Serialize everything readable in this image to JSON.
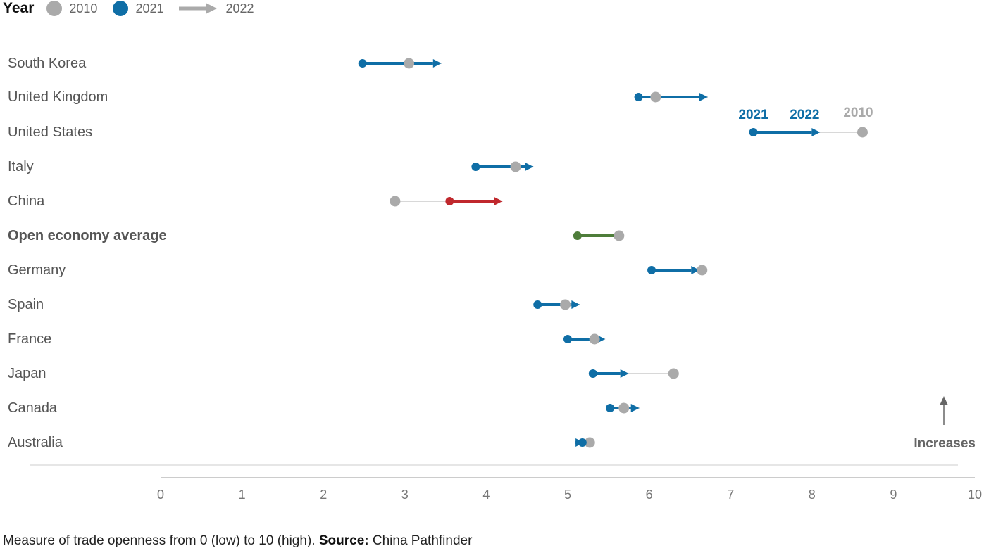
{
  "legend": {
    "title": "Year",
    "items": [
      {
        "label": "2010",
        "color": "#aaaaaa",
        "shape": "dot"
      },
      {
        "label": "2021",
        "color": "#0f6ea6",
        "shape": "dot"
      },
      {
        "label": "2022",
        "color": "#aaaaaa",
        "shape": "arrow"
      }
    ]
  },
  "caption": {
    "text": "Measure of trade openness from 0 (low) to 10 (high).",
    "source_label": "Source:",
    "source": "China Pathfinder"
  },
  "colors": {
    "v2010": "#aaaaaa",
    "v2021": "#0f6ea6",
    "china": "#c0282d",
    "average": "#4e7d3a",
    "label": "#555555",
    "axis": "#888888"
  },
  "chart_data": {
    "type": "dumbbell",
    "xlim": [
      0,
      10
    ],
    "xticks": [
      "0",
      "1",
      "2",
      "3",
      "4",
      "5",
      "6",
      "7",
      "8",
      "9",
      "10"
    ],
    "annotation": "Increases",
    "callouts": {
      "y2021": "2021",
      "y2022": "2022",
      "y2010": "2010"
    },
    "rows": [
      {
        "country": "South Korea",
        "v2010": 3.05,
        "v2021": 2.48,
        "v2022": 3.45,
        "style": "normal"
      },
      {
        "country": "United Kingdom",
        "v2010": 6.08,
        "v2021": 5.87,
        "v2022": 6.72,
        "style": "normal"
      },
      {
        "country": "United States",
        "v2010": 8.62,
        "v2021": 7.28,
        "v2022": 8.1,
        "style": "normal",
        "callouts": true
      },
      {
        "country": "Italy",
        "v2010": 4.36,
        "v2021": 3.87,
        "v2022": 4.58,
        "style": "normal"
      },
      {
        "country": "China",
        "v2010": 2.88,
        "v2021": 3.55,
        "v2022": 4.2,
        "style": "china"
      },
      {
        "country": "Open economy average",
        "v2010": 5.63,
        "v2021": 5.12,
        "v2022": 5.63,
        "style": "average"
      },
      {
        "country": "Germany",
        "v2010": 6.65,
        "v2021": 6.03,
        "v2022": 6.62,
        "style": "normal"
      },
      {
        "country": "Spain",
        "v2010": 4.97,
        "v2021": 4.63,
        "v2022": 5.15,
        "style": "normal"
      },
      {
        "country": "France",
        "v2010": 5.33,
        "v2021": 5.0,
        "v2022": 5.46,
        "style": "normal"
      },
      {
        "country": "Japan",
        "v2010": 6.3,
        "v2021": 5.31,
        "v2022": 5.75,
        "style": "normal"
      },
      {
        "country": "Canada",
        "v2010": 5.69,
        "v2021": 5.52,
        "v2022": 5.88,
        "style": "normal"
      },
      {
        "country": "Australia",
        "v2010": 5.27,
        "v2021": 5.18,
        "v2022": 5.2,
        "style": "normal"
      }
    ]
  }
}
